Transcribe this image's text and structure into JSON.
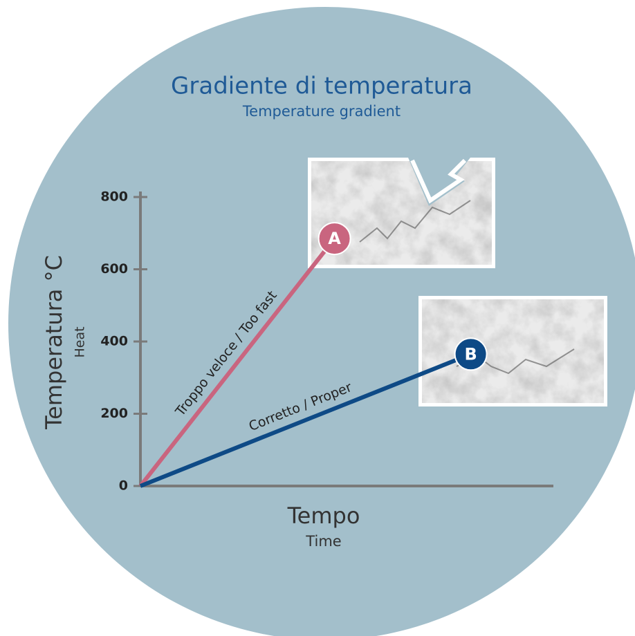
{
  "chart_data": {
    "type": "line",
    "title": "Gradiente di temperatura",
    "subtitle": "Temperature gradient",
    "ylabel": "Temperatura °C",
    "ylabel_sub": "Heat",
    "xlabel": "Tempo",
    "xlabel_sub": "Time",
    "ylim": [
      0,
      800
    ],
    "yticks": [
      0,
      200,
      400,
      600,
      800
    ],
    "xlim": [
      0,
      1
    ],
    "axis_color": "#7a7a7a",
    "series": [
      {
        "name": "Troppo veloce / Too fast",
        "color": "#c9657f",
        "marker_label": "A",
        "x": [
          0,
          0.47
        ],
        "values": [
          0,
          685
        ]
      },
      {
        "name": "Corretto / Proper",
        "color": "#0e4a86",
        "marker_label": "B",
        "x": [
          0,
          0.8
        ],
        "values": [
          0,
          365
        ]
      }
    ]
  }
}
